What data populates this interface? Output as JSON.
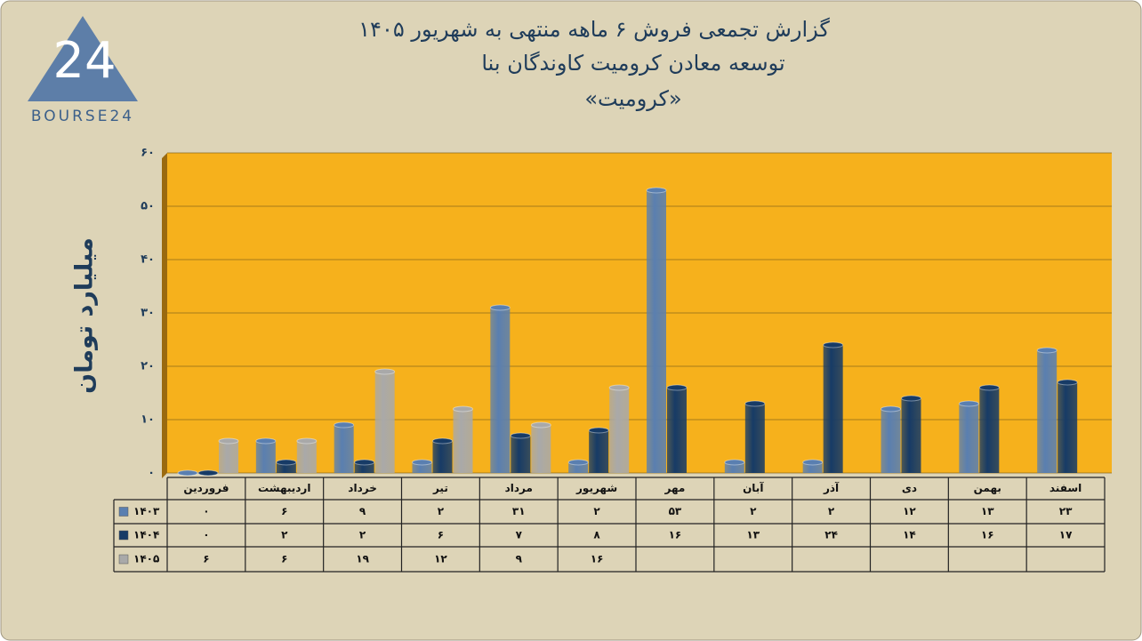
{
  "logo": {
    "mark": "24",
    "text": "BOURSE24"
  },
  "chart_data": {
    "type": "bar",
    "title": "گزارش تجمعی فروش ۶ ماهه منتهی به شهریور ۱۴۰۵",
    "subtitle": "توسعه معادن کرومیت کاوندگان بنا",
    "annotation": "«کرومیت»",
    "y_label": "میلیارد تومان",
    "categories": [
      "فروردین",
      "اردیبهشت",
      "خرداد",
      "تیر",
      "مرداد",
      "شهریور",
      "مهر",
      "آبان",
      "آذر",
      "دی",
      "بهمن",
      "اسفند"
    ],
    "series": [
      {
        "name": "۱۴۰۳",
        "color": "#5a7fb0",
        "values": [
          0,
          6,
          9,
          2,
          31,
          2,
          53,
          2,
          2,
          12,
          13,
          23
        ],
        "value_labels": [
          "۰",
          "۶",
          "۹",
          "۲",
          "۳۱",
          "۲",
          "۵۳",
          "۲",
          "۲",
          "۱۲",
          "۱۳",
          "۲۳"
        ]
      },
      {
        "name": "۱۴۰۴",
        "color": "#173b66",
        "values": [
          0,
          2,
          2,
          6,
          7,
          8,
          16,
          13,
          24,
          14,
          16,
          17
        ],
        "value_labels": [
          "۰",
          "۲",
          "۲",
          "۶",
          "۷",
          "۸",
          "۱۶",
          "۱۳",
          "۲۴",
          "۱۴",
          "۱۶",
          "۱۷"
        ]
      },
      {
        "name": "۱۴۰۵",
        "color": "#a9a9a9",
        "values": [
          6,
          6,
          19,
          12,
          9,
          16,
          null,
          null,
          null,
          null,
          null,
          null
        ],
        "value_labels": [
          "۶",
          "۶",
          "۱۹",
          "۱۲",
          "۹",
          "۱۶",
          null,
          null,
          null,
          null,
          null,
          null
        ]
      }
    ],
    "ylim": [
      0,
      60
    ],
    "yticks": [
      {
        "value": 0,
        "label": "۰"
      },
      {
        "value": 10,
        "label": "۱۰"
      },
      {
        "value": 20,
        "label": "۲۰"
      },
      {
        "value": 30,
        "label": "۳۰"
      },
      {
        "value": 40,
        "label": "۴۰"
      },
      {
        "value": 50,
        "label": "۵۰"
      },
      {
        "value": 60,
        "label": "۶۰"
      }
    ],
    "grid": true,
    "plot_color": "#f6b11c"
  }
}
